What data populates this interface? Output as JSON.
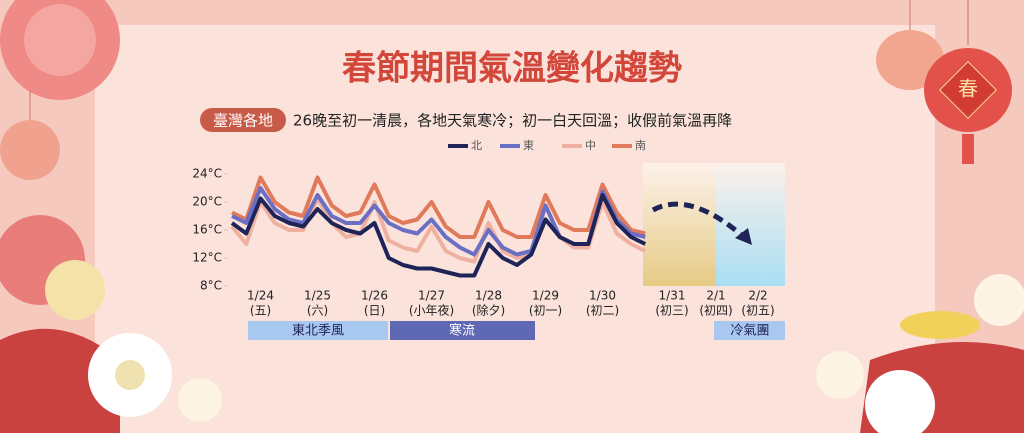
{
  "chart_data": {
    "type": "line",
    "title": "春節期間氣溫變化趨勢",
    "tag": "臺灣各地",
    "subtitle": "26晚至初一清晨，各地天氣寒冷；初一白天回溫；收假前氣溫再降",
    "categories": [
      null,
      null,
      "1/24",
      null,
      null,
      null,
      "1/25",
      null,
      null,
      null,
      "1/26",
      null,
      null,
      null,
      "1/27",
      null,
      null,
      null,
      "1/28",
      null,
      null,
      null,
      "1/29",
      null,
      null,
      null,
      "1/30",
      null,
      null,
      null
    ],
    "category_sublabels": [
      null,
      null,
      "(五)",
      null,
      null,
      null,
      "(六)",
      null,
      null,
      null,
      "(日)",
      null,
      null,
      null,
      "(小年夜)",
      null,
      null,
      null,
      "(除夕)",
      null,
      null,
      null,
      "(初一)",
      null,
      null,
      null,
      "(初二)",
      null,
      null,
      null
    ],
    "series": [
      {
        "name": "北",
        "color": "#1e2358",
        "values": [
          17,
          15.5,
          20.5,
          18,
          17,
          16.5,
          19,
          17,
          16,
          15.5,
          17,
          12,
          11,
          10.5,
          10.5,
          10,
          9.5,
          9.5,
          14,
          12,
          11,
          12.5,
          17.5,
          15,
          14,
          14,
          21,
          17,
          15,
          14
        ]
      },
      {
        "name": "東",
        "color": "#6a6fc4",
        "values": [
          18,
          17,
          22,
          19,
          17.5,
          17,
          21,
          18,
          17,
          17,
          19.5,
          17,
          16,
          15.5,
          17.5,
          15,
          13.5,
          12.5,
          16,
          13.5,
          12.5,
          13,
          19.5,
          15,
          14,
          14,
          21.5,
          17.5,
          15.5,
          15
        ]
      },
      {
        "name": "中",
        "color": "#f0b0a0",
        "values": [
          16.5,
          14,
          20,
          17,
          16,
          16,
          20.5,
          17,
          15,
          15.5,
          20,
          14.5,
          13.5,
          13,
          16.5,
          13,
          12,
          11.5,
          17,
          13,
          12,
          12.5,
          19.5,
          15,
          13.5,
          13.5,
          20,
          15.5,
          14,
          13
        ]
      },
      {
        "name": "南",
        "color": "#e07a5a",
        "values": [
          18.5,
          17.5,
          23.5,
          20,
          18.5,
          18,
          23.5,
          19.5,
          18,
          18.5,
          22.5,
          18,
          17,
          17.5,
          20,
          16.5,
          15,
          15,
          20,
          16,
          15,
          15,
          21,
          17,
          16,
          16,
          22.5,
          18.5,
          16,
          15.5
        ]
      }
    ],
    "ylim": [
      8,
      24
    ],
    "yticks": [
      {
        "value": 8,
        "label": "8°C"
      },
      {
        "value": 12,
        "label": "12°C"
      },
      {
        "value": 16,
        "label": "16°C"
      },
      {
        "value": 20,
        "label": "20°C"
      },
      {
        "value": 24,
        "label": "24°C"
      }
    ],
    "forecast_days": [
      {
        "date": "1/31",
        "sub": "(初三)"
      },
      {
        "date": "2/1",
        "sub": "(初四)"
      },
      {
        "date": "2/2",
        "sub": "(初五)"
      }
    ],
    "annotations": [
      "東北季風",
      "寒流",
      "冷氣團"
    ]
  },
  "lantern": "春"
}
